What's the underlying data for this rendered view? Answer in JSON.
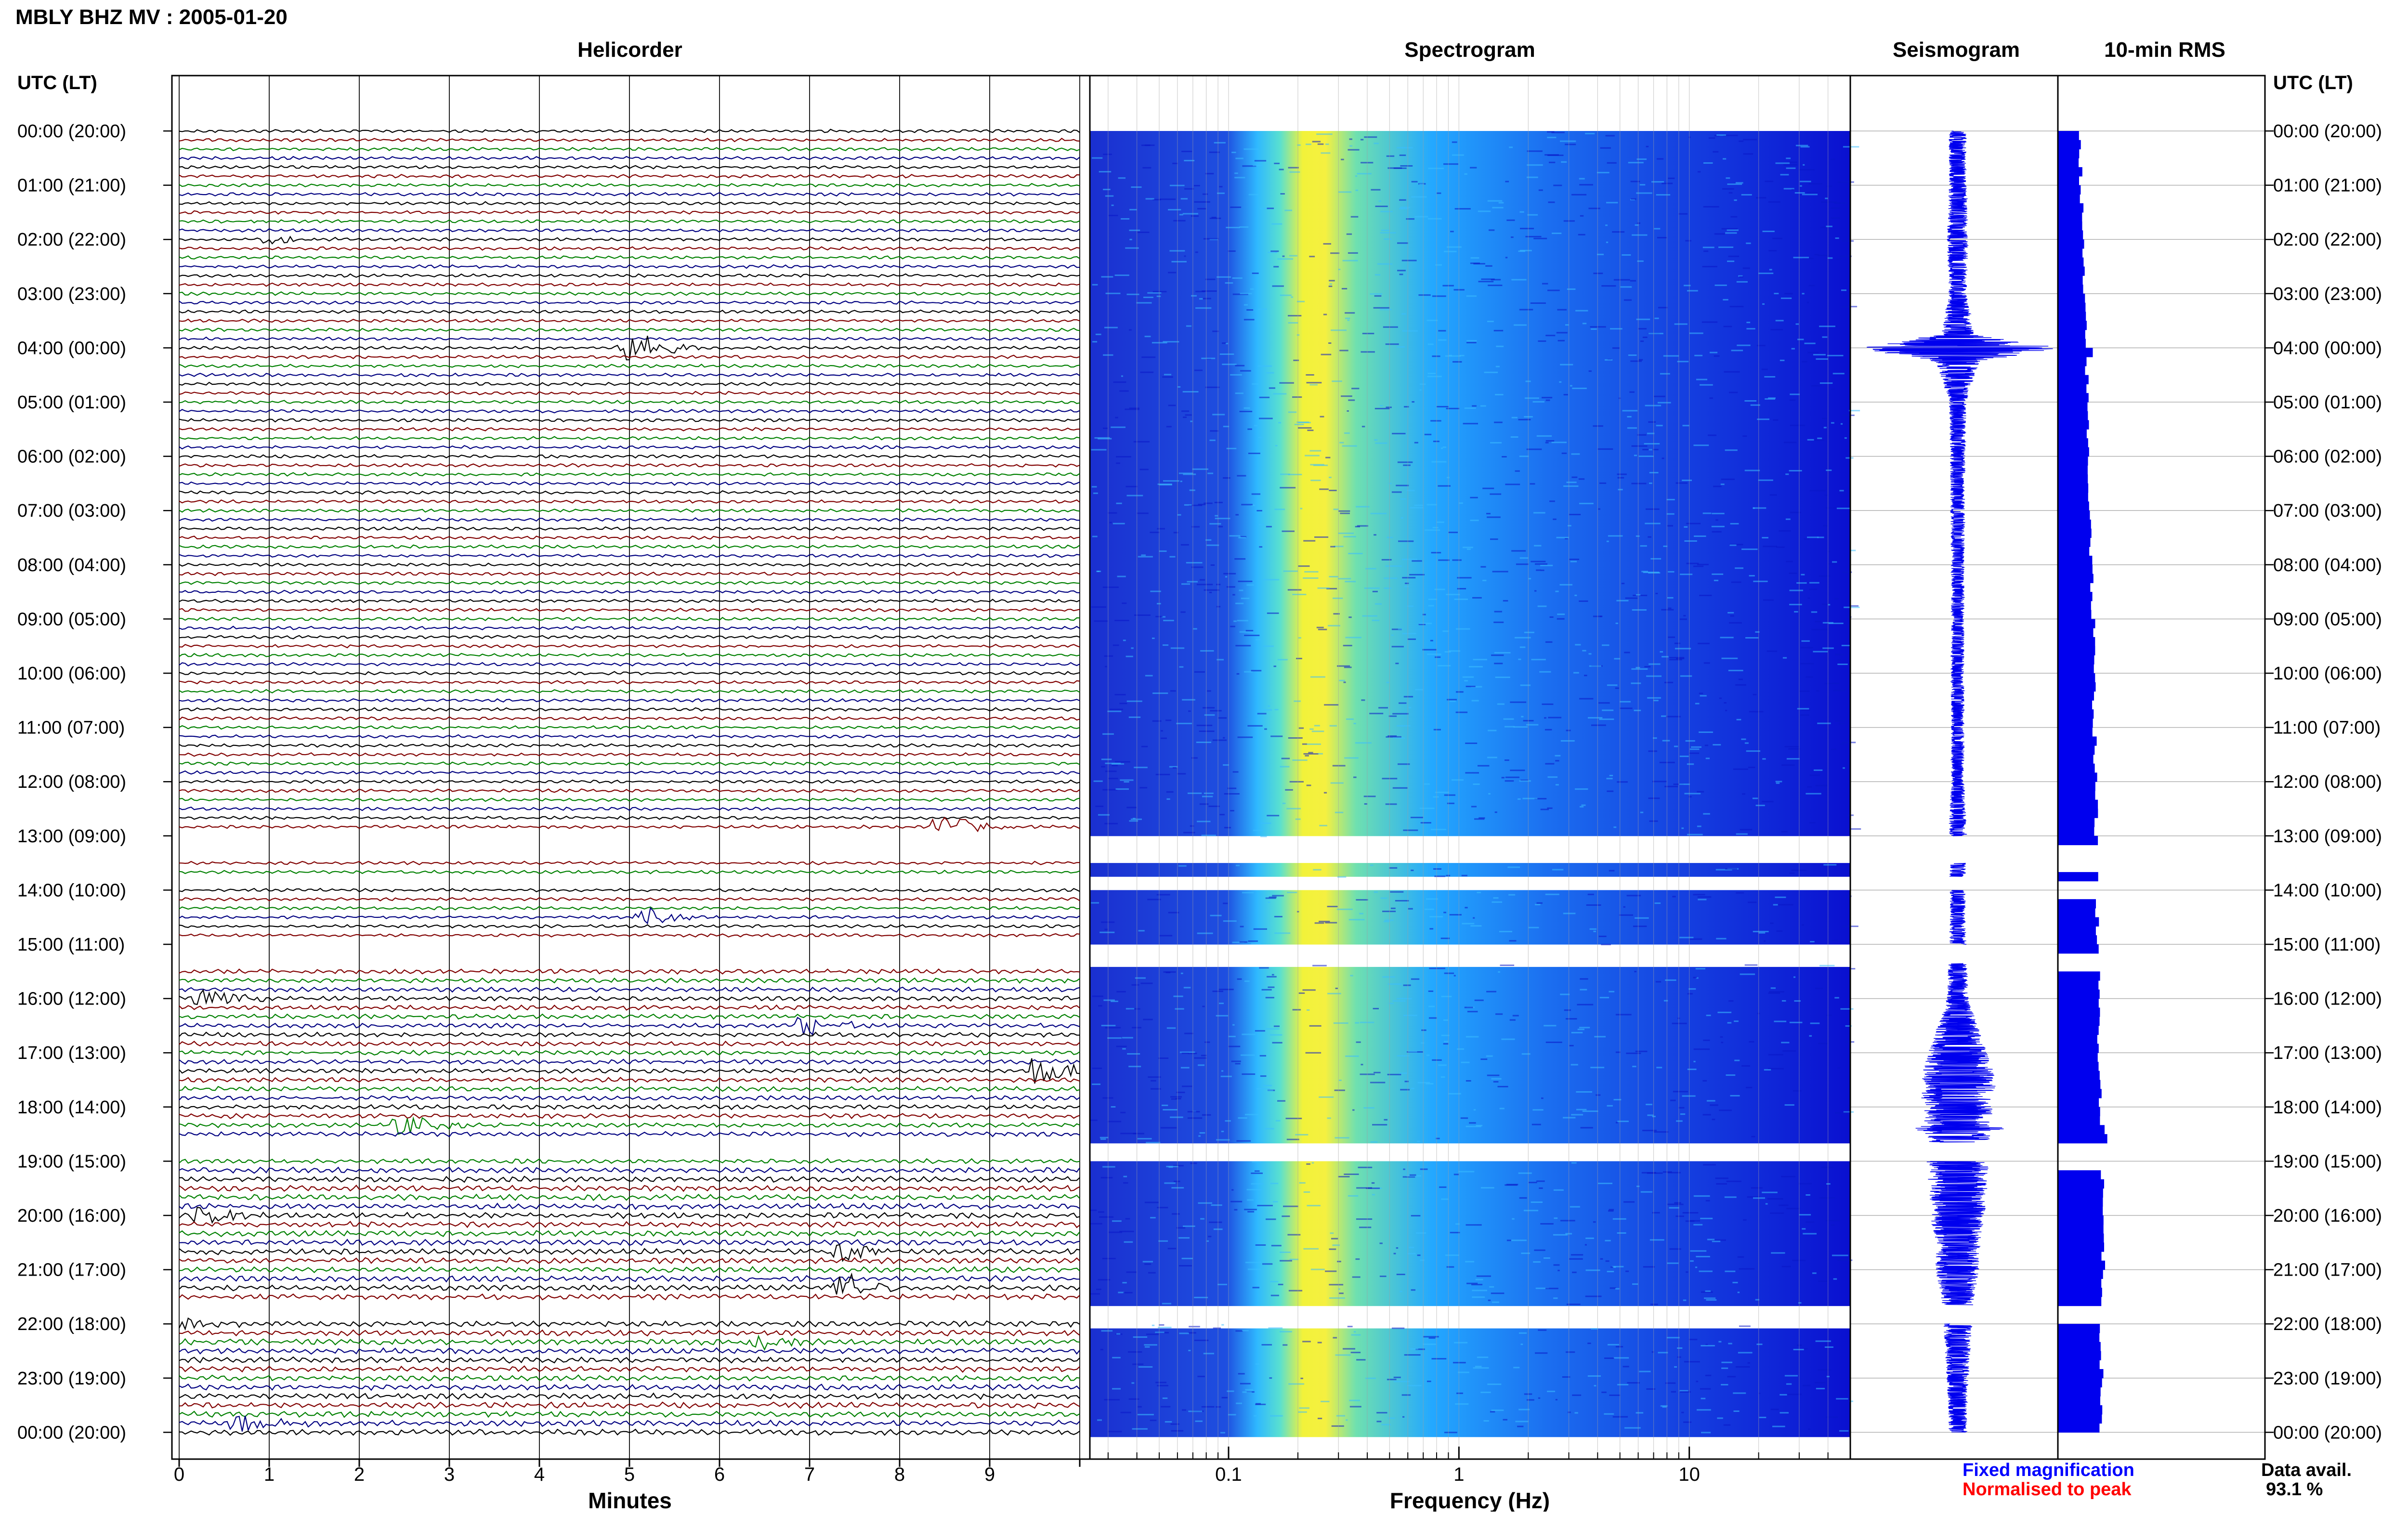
{
  "header": {
    "title": "MBLY BHZ MV : 2005-01-20"
  },
  "panels": {
    "helicorder": "Helicorder",
    "spectrogram": "Spectrogram",
    "seismogram": "Seismogram",
    "rms": "10-min RMS"
  },
  "time_axis_label": "UTC (LT)",
  "footer": {
    "fixed": "Fixed magnification",
    "normalised": "Normalised to peak",
    "data_avail_label": "Data avail.",
    "data_avail_value": "93.1 %"
  },
  "colors": {
    "fixed": "#0000ff",
    "normalised": "#ff0000",
    "trace_colors": [
      "#000000",
      "#800000",
      "#008000",
      "#000080"
    ],
    "bar": "#0000ee",
    "spec_low": "#1010c0",
    "spec_mid": "#00c0ff",
    "spec_peak": "#ffff00"
  },
  "chart_data": [
    {
      "type": "line",
      "panel": "helicorder",
      "xlabel": "Minutes",
      "xlim": [
        0,
        10
      ],
      "xticks": [
        "0",
        "1",
        "2",
        "3",
        "4",
        "5",
        "6",
        "7",
        "8",
        "9"
      ],
      "row_labels": [
        "00:00 (20:00)",
        "01:00 (21:00)",
        "02:00 (22:00)",
        "03:00 (23:00)",
        "04:00 (00:00)",
        "05:00 (01:00)",
        "06:00 (02:00)",
        "07:00 (03:00)",
        "08:00 (04:00)",
        "09:00 (05:00)",
        "10:00 (06:00)",
        "11:00 (07:00)",
        "12:00 (08:00)",
        "13:00 (09:00)",
        "14:00 (10:00)",
        "15:00 (11:00)",
        "16:00 (12:00)",
        "17:00 (13:00)",
        "18:00 (14:00)",
        "19:00 (15:00)",
        "20:00 (16:00)",
        "21:00 (17:00)",
        "22:00 (18:00)",
        "23:00 (19:00)",
        "00:00 (20:00)"
      ],
      "traces_per_hour": 6,
      "data_gaps_hours": [
        [
          13.0,
          13.5
        ],
        [
          13.75,
          14.0
        ],
        [
          15.0,
          15.35
        ],
        [
          18.65,
          19.0
        ],
        [
          21.65,
          22.0
        ]
      ],
      "events": [
        {
          "hour": 2.0,
          "minute": 1.0,
          "amp": 0.3
        },
        {
          "hour": 4.0,
          "minute": 5.0,
          "amp": 1.4
        },
        {
          "hour": 12.8,
          "minute": 8.5,
          "amp": 0.9
        },
        {
          "hour": 14.5,
          "minute": 5.2,
          "amp": 0.7
        },
        {
          "hour": 16.0,
          "minute": 0.3,
          "amp": 0.6
        },
        {
          "hour": 16.55,
          "minute": 7.0,
          "amp": 0.6
        },
        {
          "hour": 17.3,
          "minute": 9.6,
          "amp": 1.0
        },
        {
          "hour": 18.4,
          "minute": 2.5,
          "amp": 0.8
        },
        {
          "hour": 19.95,
          "minute": 0.3,
          "amp": 0.7
        },
        {
          "hour": 20.65,
          "minute": 7.4,
          "amp": 0.7
        },
        {
          "hour": 21.3,
          "minute": 7.4,
          "amp": 1.1
        },
        {
          "hour": 22.0,
          "minute": 0.1,
          "amp": 0.4
        },
        {
          "hour": 22.3,
          "minute": 6.5,
          "amp": 0.5
        },
        {
          "hour": 23.85,
          "minute": 0.7,
          "amp": 0.8
        }
      ]
    },
    {
      "type": "heatmap",
      "panel": "spectrogram",
      "xlabel": "Frequency (Hz)",
      "xscale": "log",
      "xlim": [
        0.025,
        50
      ],
      "xticks": [
        "0.1",
        "1",
        "10"
      ],
      "peak_band_hz": [
        0.15,
        0.3
      ],
      "data_gaps_hours": [
        [
          13.0,
          13.5
        ],
        [
          13.75,
          14.0
        ],
        [
          15.0,
          15.35
        ],
        [
          18.65,
          19.0
        ],
        [
          21.65,
          22.0
        ]
      ]
    },
    {
      "type": "line",
      "panel": "seismogram",
      "envelope_hours": [
        0,
        1,
        2,
        3,
        3.75,
        4.0,
        4.25,
        5,
        6,
        8,
        10,
        12,
        12.8,
        14.5,
        16,
        17.5,
        18.35,
        18.4,
        18.45,
        20,
        20.5,
        21,
        21.5,
        23,
        24
      ],
      "envelope_amp": [
        0.08,
        0.08,
        0.1,
        0.08,
        0.15,
        0.95,
        0.2,
        0.08,
        0.07,
        0.06,
        0.06,
        0.06,
        0.08,
        0.07,
        0.1,
        0.35,
        0.3,
        0.5,
        0.3,
        0.25,
        0.2,
        0.2,
        0.15,
        0.1,
        0.08
      ]
    },
    {
      "type": "bar",
      "panel": "rms",
      "xlim": [
        0,
        1
      ],
      "values_per_hour": [
        0.4,
        0.42,
        0.45,
        0.48,
        0.52,
        0.54,
        0.56,
        0.6,
        0.62,
        0.65,
        0.66,
        0.68,
        0.7,
        0.7,
        0.72,
        0.74,
        0.76,
        0.78,
        0.8,
        0.82,
        0.84,
        0.82,
        0.8,
        0.78
      ]
    }
  ]
}
